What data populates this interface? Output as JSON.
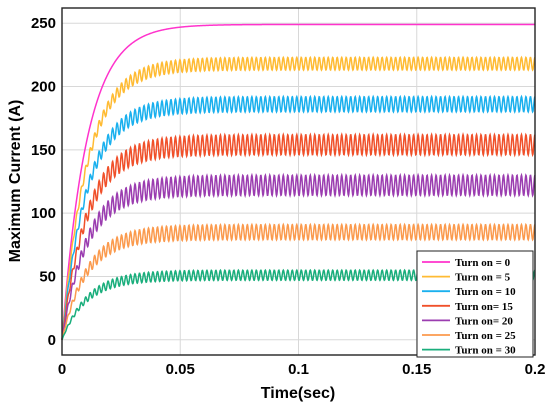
{
  "chart_data": {
    "type": "line",
    "title": "",
    "xlabel": "Time(sec)",
    "ylabel": "Maximum Current (A)",
    "xlim": [
      0,
      0.2
    ],
    "ylim": [
      -12,
      262
    ],
    "xticks": [
      0,
      0.05,
      0.1,
      0.15,
      0.2
    ],
    "xtick_labels": [
      "0",
      "0.05",
      "0.1",
      "0.15",
      "0.2"
    ],
    "yticks": [
      0,
      50,
      100,
      150,
      200,
      250
    ],
    "ytick_labels": [
      "0",
      "50",
      "100",
      "150",
      "200",
      "250"
    ],
    "grid": true,
    "legend_position": "bottom-right",
    "series": [
      {
        "name": "Turn on = 0",
        "color": "#ff33cc",
        "steady_state": 249,
        "ripple": 0
      },
      {
        "name": "Turn on = 5",
        "color": "#ffbb33",
        "steady_state": 218,
        "ripple": 5
      },
      {
        "name": "Turn on = 10",
        "color": "#1ab0ee",
        "steady_state": 186,
        "ripple": 6
      },
      {
        "name": "Turn on= 15",
        "color": "#f0502a",
        "steady_state": 154,
        "ripple": 8
      },
      {
        "name": "Turn on= 20",
        "color": "#9b3db0",
        "steady_state": 122,
        "ripple": 8
      },
      {
        "name": "Turn on = 25",
        "color": "#fb9a4d",
        "steady_state": 85,
        "ripple": 6
      },
      {
        "name": "Turn on = 30",
        "color": "#1aae7c",
        "steady_state": 51,
        "ripple": 4
      }
    ]
  }
}
